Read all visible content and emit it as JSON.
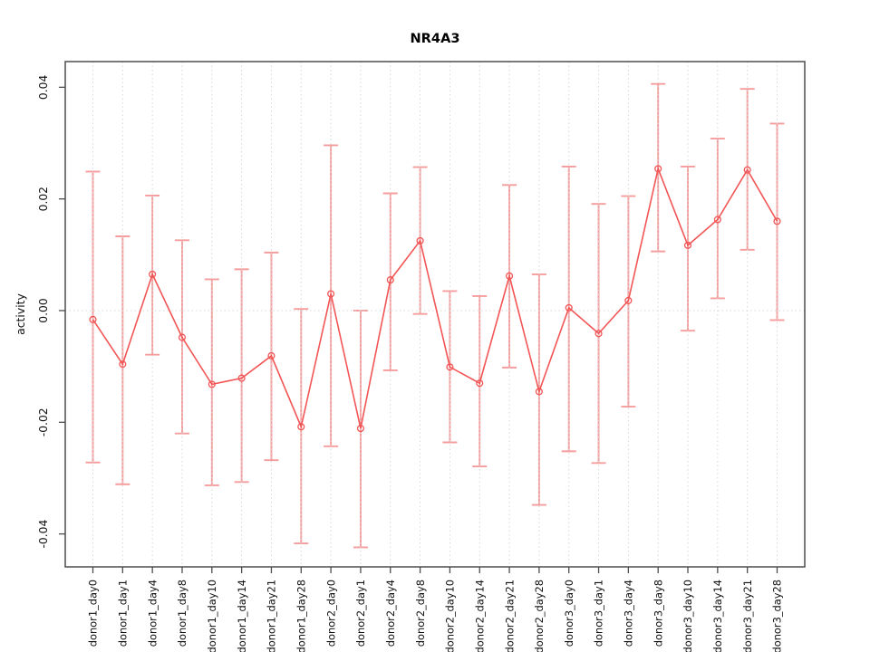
{
  "window": {
    "title": "NR4A3"
  },
  "colors": {
    "background": "#ffffff",
    "error_bar": "#f59c9c",
    "series_line": "#f25555",
    "marker_stroke": "#f25555",
    "grid": "#d7d7d7",
    "axis_box": "#4d4d4d",
    "tick": "#4d4d4d",
    "label_text": "#111111",
    "title_text": "#000000"
  },
  "chart_data": {
    "type": "line",
    "title": "NR4A3",
    "xlabel": "",
    "ylabel": "activity",
    "ylim": [
      -0.0459,
      0.0446
    ],
    "yticks": [
      -0.04,
      -0.02,
      0,
      0.02,
      0.04
    ],
    "ytick_labels": [
      "-0.04",
      "-0.02",
      "0.00",
      "0.02",
      "0.04"
    ],
    "grid": {
      "vertical_dotted_per_category": true,
      "horizontal_dotted_zero_line": true
    },
    "legend": "none",
    "categories": [
      "donor1_day0",
      "donor1_day1",
      "donor1_day4",
      "donor1_day8",
      "donor1_day10",
      "donor1_day14",
      "donor1_day21",
      "donor1_day28",
      "donor2_day0",
      "donor2_day1",
      "donor2_day4",
      "donor2_day8",
      "donor2_day10",
      "donor2_day14",
      "donor2_day21",
      "donor2_day28",
      "donor3_day0",
      "donor3_day1",
      "donor3_day4",
      "donor3_day8",
      "donor3_day10",
      "donor3_day14",
      "donor3_day21",
      "donor3_day28"
    ],
    "series": [
      {
        "name": "activity",
        "marker": "open-circle",
        "values": [
          -0.0016,
          -0.0096,
          0.0065,
          -0.0048,
          -0.0132,
          -0.0121,
          -0.0081,
          -0.0208,
          0.003,
          -0.0211,
          0.0055,
          0.0125,
          -0.0101,
          -0.013,
          0.0062,
          -0.0145,
          0.0005,
          -0.0041,
          0.0018,
          0.0254,
          0.0117,
          0.0163,
          0.0252,
          0.016
        ],
        "lower": [
          -0.0272,
          -0.0311,
          -0.0079,
          -0.022,
          -0.0313,
          -0.0307,
          -0.0268,
          -0.0417,
          -0.0243,
          -0.0424,
          -0.0107,
          -0.0006,
          -0.0236,
          -0.0279,
          -0.0102,
          -0.0348,
          -0.0252,
          -0.0273,
          -0.0172,
          0.0106,
          -0.0036,
          0.0022,
          0.0109,
          -0.0017
        ],
        "upper": [
          0.0249,
          0.0133,
          0.0206,
          0.0126,
          0.0056,
          0.0074,
          0.0104,
          0.0003,
          0.0296,
          0.0,
          0.021,
          0.0257,
          0.0035,
          0.0026,
          0.0225,
          0.0065,
          0.0258,
          0.0191,
          0.0205,
          0.0406,
          0.0258,
          0.0308,
          0.0397,
          0.0335
        ]
      }
    ]
  }
}
